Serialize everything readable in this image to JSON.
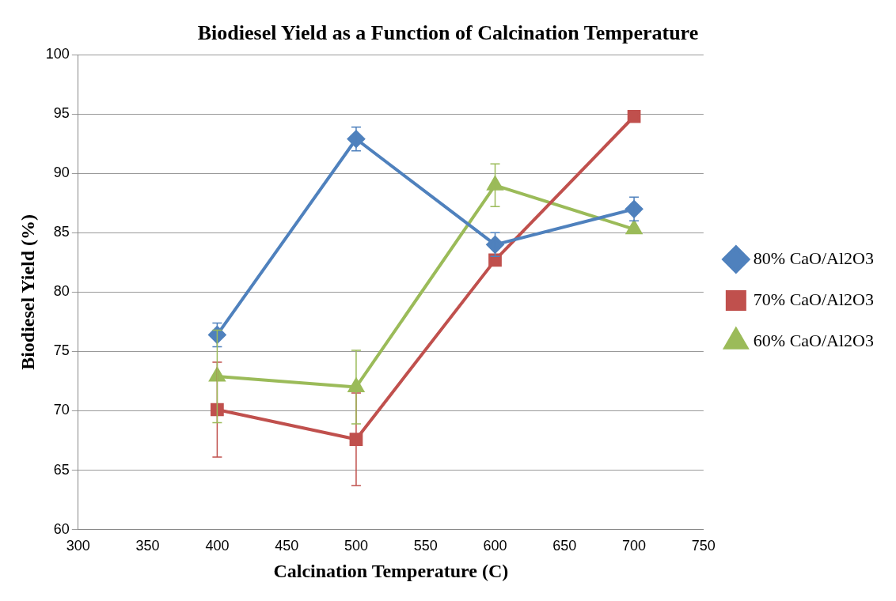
{
  "chart_data": {
    "type": "line",
    "title": "Biodiesel Yield as a Function of Calcination Temperature",
    "xlabel": "Calcination Temperature (C)",
    "ylabel": "Biodiesel Yield (%)",
    "x": [
      400,
      500,
      600,
      700
    ],
    "series": [
      {
        "name": "80% CaO/Al2O3",
        "color": "#4f81bd",
        "marker": "diamond",
        "values": [
          76.4,
          92.9,
          84,
          87
        ],
        "errors": [
          1,
          1,
          1,
          1
        ]
      },
      {
        "name": "70% CaO/Al2O3",
        "color": "#c0504d",
        "marker": "square",
        "values": [
          70.1,
          67.6,
          82.7,
          94.8
        ],
        "errors": [
          4,
          3.9,
          null,
          null
        ]
      },
      {
        "name": "60% CaO/Al2O3",
        "color": "#9bbb59",
        "marker": "triangle",
        "values": [
          72.9,
          72,
          89,
          85.3
        ],
        "errors": [
          3.9,
          3.1,
          1.8,
          null
        ]
      }
    ],
    "xlim": [
      300,
      750
    ],
    "xticks": [
      300,
      350,
      400,
      450,
      500,
      550,
      600,
      650,
      700,
      750
    ],
    "ylim": [
      60,
      100
    ],
    "yticks": [
      60,
      65,
      70,
      75,
      80,
      85,
      90,
      95,
      100
    ],
    "grid": "y",
    "legend": "right",
    "line_style": "solid"
  }
}
